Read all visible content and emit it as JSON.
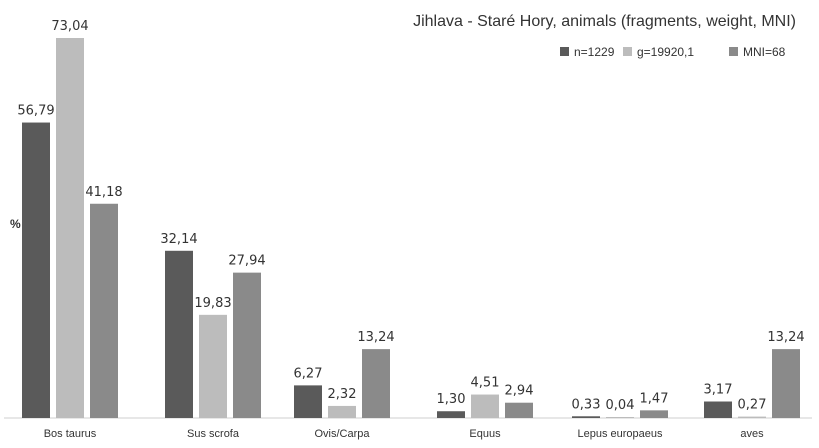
{
  "chart_data": {
    "type": "bar",
    "title": "Jihlava - Staré Hory, animals (fragments, weight, MNI)",
    "ylabel": "%",
    "xlabel": "",
    "categories": [
      "Bos taurus",
      "Sus scrofa",
      "Ovis/Carpa",
      "Equus",
      "Lepus europaeus",
      "aves"
    ],
    "series": [
      {
        "name": "n=1229",
        "color": "#5a5a5a",
        "values": [
          56.79,
          32.14,
          6.27,
          1.3,
          0.33,
          3.17
        ],
        "labels": [
          "56,79",
          "32,14",
          "6,27",
          "1,30",
          "0,33",
          "3,17"
        ]
      },
      {
        "name": "g=19920,1",
        "color": "#bcbcbc",
        "values": [
          73.04,
          19.83,
          2.32,
          4.51,
          0.04,
          0.27
        ],
        "labels": [
          "73,04",
          "19,83",
          "2,32",
          "4,51",
          "0,04",
          "0,27"
        ]
      },
      {
        "name": "MNI=68",
        "color": "#8a8a8a",
        "values": [
          41.18,
          27.94,
          13.24,
          2.94,
          1.47,
          13.24
        ],
        "labels": [
          "41,18",
          "27,94",
          "13,24",
          "2,94",
          "1,47",
          "13,24"
        ]
      }
    ],
    "ylim": [
      0,
      73.04
    ],
    "grid": false,
    "legend_position": "top-right"
  }
}
